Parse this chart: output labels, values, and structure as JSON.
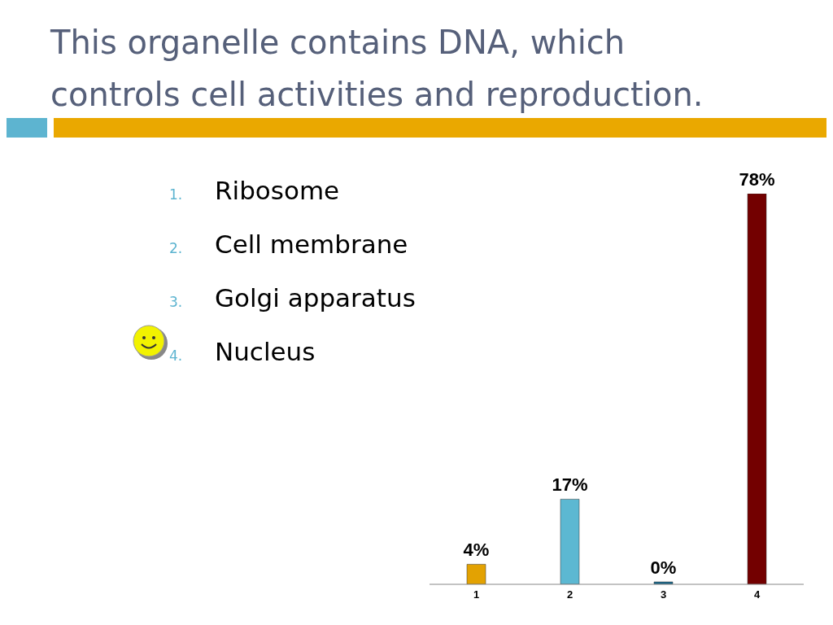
{
  "chart_data": {
    "type": "bar",
    "title": "This organelle contains DNA, which controls cell activities and reproduction.",
    "categories": [
      "1",
      "2",
      "3",
      "4"
    ],
    "values": [
      4,
      17,
      0,
      78
    ],
    "colors": [
      "#e3a202",
      "#5cb8d2",
      "#1d6a8c",
      "#730000"
    ],
    "value_labels": [
      "4%",
      "17%",
      "0%",
      "78%"
    ],
    "annotations": [
      "1. Ribosome",
      "2. Cell membrane",
      "3. Golgi apparatus",
      "4. Nucleus"
    ]
  }
}
